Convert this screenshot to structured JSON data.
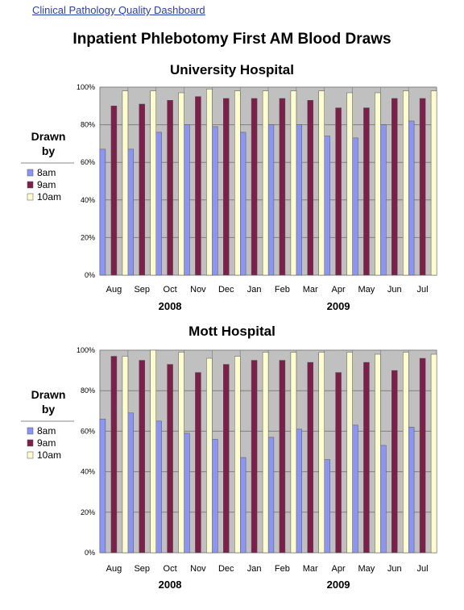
{
  "page": {
    "header_link": "Clinical Pathology Quality Dashboard",
    "title": "Inpatient Phlebotomy First AM Blood Draws"
  },
  "colors": {
    "plot_bg": "#c0c0c0",
    "grid": "#808080",
    "series_8am": "#8c95f5",
    "series_9am": "#7d1f49",
    "series_10am": "#fdfdcd"
  },
  "chart_data": [
    {
      "type": "bar",
      "title": "University Hospital",
      "categories": [
        "Aug",
        "Sep",
        "Oct",
        "Nov",
        "Dec",
        "Jan",
        "Feb",
        "Mar",
        "Apr",
        "May",
        "Jun",
        "Jul"
      ],
      "year_labels": [
        "2008",
        "2009"
      ],
      "y_ticks": [
        "0%",
        "20%",
        "40%",
        "60%",
        "80%",
        "100%"
      ],
      "ylim": [
        0,
        100
      ],
      "grid": true,
      "legend": {
        "title_line1": "Drawn",
        "title_line2": "by",
        "placement": "left"
      },
      "series": [
        {
          "name": "8am",
          "values": [
            67,
            67,
            76,
            80,
            79,
            76,
            80,
            80,
            74,
            73,
            80,
            82
          ]
        },
        {
          "name": "9am",
          "values": [
            90,
            91,
            93,
            95,
            94,
            94,
            94,
            93,
            89,
            89,
            94,
            94
          ]
        },
        {
          "name": "10am",
          "values": [
            98,
            98,
            97,
            99,
            98,
            98,
            98,
            98,
            97,
            97,
            98,
            98
          ]
        }
      ]
    },
    {
      "type": "bar",
      "title": "Mott Hospital",
      "categories": [
        "Aug",
        "Sep",
        "Oct",
        "Nov",
        "Dec",
        "Jan",
        "Feb",
        "Mar",
        "Apr",
        "May",
        "Jun",
        "Jul"
      ],
      "year_labels": [
        "2008",
        "2009"
      ],
      "y_ticks": [
        "0%",
        "20%",
        "40%",
        "60%",
        "80%",
        "100%"
      ],
      "ylim": [
        0,
        100
      ],
      "grid": true,
      "legend": {
        "title_line1": "Drawn",
        "title_line2": "by",
        "placement": "left"
      },
      "series": [
        {
          "name": "8am",
          "values": [
            66,
            69,
            65,
            59,
            56,
            47,
            57,
            61,
            46,
            63,
            53,
            62
          ]
        },
        {
          "name": "9am",
          "values": [
            97,
            95,
            93,
            89,
            93,
            95,
            95,
            94,
            89,
            94,
            90,
            96
          ]
        },
        {
          "name": "10am",
          "values": [
            97,
            100,
            99,
            96,
            97,
            99,
            99,
            99,
            99,
            98,
            99,
            98
          ]
        }
      ]
    }
  ]
}
